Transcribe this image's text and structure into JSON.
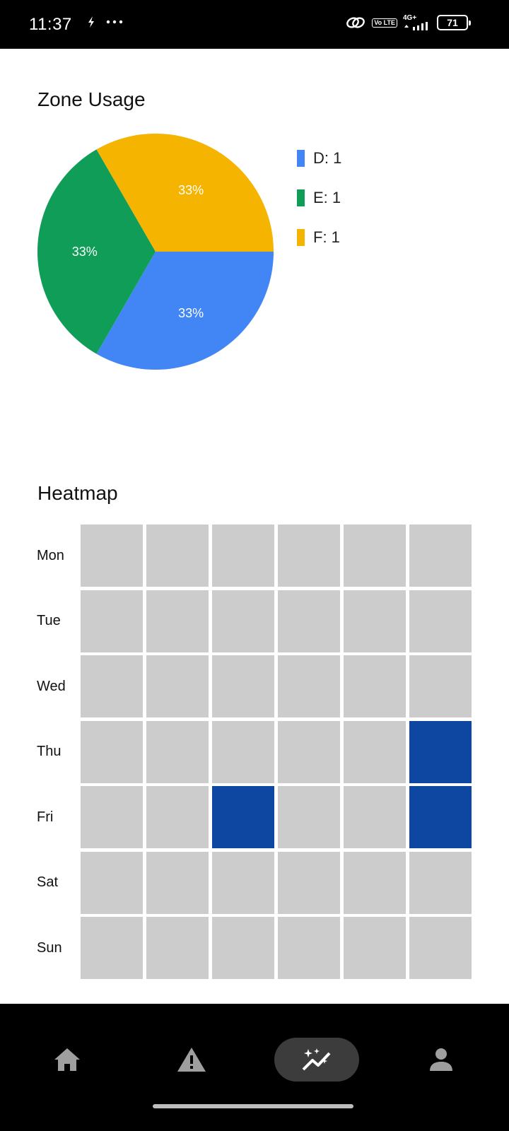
{
  "status_bar": {
    "time": "11:37",
    "network": "4G+",
    "volte": "Vo LTE",
    "battery": "71"
  },
  "pie_section": {
    "title": "Zone Usage"
  },
  "chart_data": [
    {
      "type": "pie",
      "title": "Zone Usage",
      "slices": [
        {
          "label": "D",
          "value": 1,
          "percent_label": "33%",
          "color": "#4285f4"
        },
        {
          "label": "E",
          "value": 1,
          "percent_label": "33%",
          "color": "#0f9d58"
        },
        {
          "label": "F",
          "value": 1,
          "percent_label": "33%",
          "color": "#f4b400"
        }
      ],
      "legend": [
        "D: 1",
        "E: 1",
        "F: 1"
      ],
      "legend_position": "right"
    },
    {
      "type": "heatmap",
      "title": "Heatmap",
      "rows": [
        "Mon",
        "Tue",
        "Wed",
        "Thu",
        "Fri",
        "Sat",
        "Sun"
      ],
      "columns": 6,
      "values": [
        [
          0,
          0,
          0,
          0,
          0,
          0
        ],
        [
          0,
          0,
          0,
          0,
          0,
          0
        ],
        [
          0,
          0,
          0,
          0,
          0,
          0
        ],
        [
          0,
          0,
          0,
          0,
          0,
          1
        ],
        [
          0,
          0,
          1,
          0,
          0,
          1
        ],
        [
          0,
          0,
          0,
          0,
          0,
          0
        ],
        [
          0,
          0,
          0,
          0,
          0,
          0
        ]
      ],
      "colors": {
        "empty": "#cccccc",
        "filled": "#0d47a1"
      }
    }
  ],
  "heatmap_section": {
    "title": "Heatmap"
  },
  "bottom_nav": {
    "items": [
      {
        "icon": "home-icon",
        "active": false
      },
      {
        "icon": "warning-icon",
        "active": false
      },
      {
        "icon": "analytics-icon",
        "active": true
      },
      {
        "icon": "person-icon",
        "active": false
      }
    ]
  }
}
